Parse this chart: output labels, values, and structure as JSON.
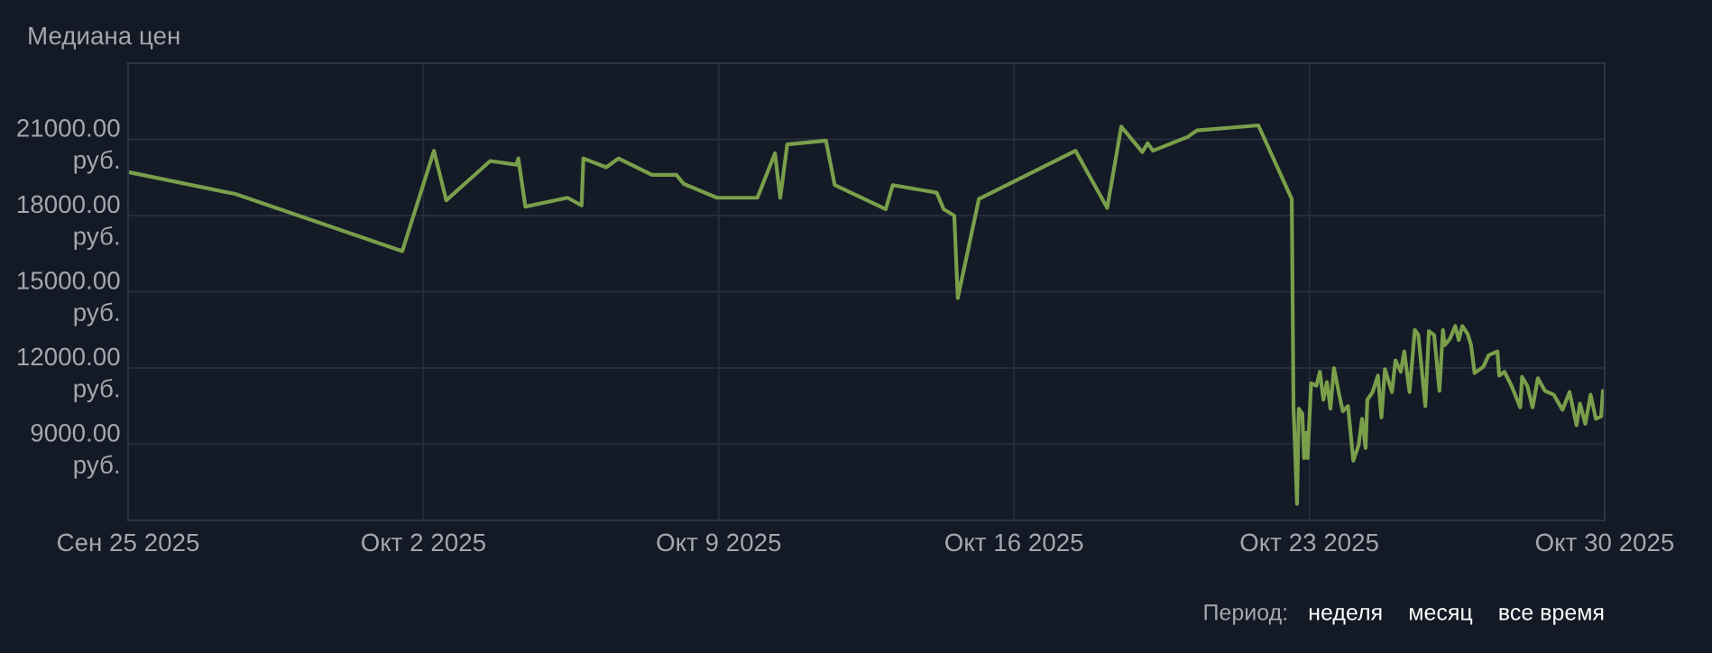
{
  "chart_data": {
    "type": "line",
    "title": "Медиана цен",
    "x": [
      "2025-09-25T01:00",
      "2025-09-27T13:00",
      "2025-10-01T12:00",
      "2025-10-02T06:00",
      "2025-10-02T13:00",
      "2025-10-03T14:00",
      "2025-10-04T05:00",
      "2025-10-04T06:00",
      "2025-10-04T10:00",
      "2025-10-05T10:00",
      "2025-10-05T18:00",
      "2025-10-05T19:00",
      "2025-10-06T08:00",
      "2025-10-06T15:00",
      "2025-10-07T10:00",
      "2025-10-08T00:00",
      "2025-10-08T04:00",
      "2025-10-08T23:00",
      "2025-10-09T22:00",
      "2025-10-10T08:00",
      "2025-10-10T11:00",
      "2025-10-10T15:00",
      "2025-10-11T13:00",
      "2025-10-11T18:00",
      "2025-10-12T23:00",
      "2025-10-13T03:00",
      "2025-10-14T04:00",
      "2025-10-14T08:00",
      "2025-10-14T14:00",
      "2025-10-14T16:00",
      "2025-10-15T04:00",
      "2025-10-17T11:00",
      "2025-10-18T05:00",
      "2025-10-18T13:00",
      "2025-10-19T01:00",
      "2025-10-19T04:00",
      "2025-10-19T07:00",
      "2025-10-20T03:00",
      "2025-10-20T08:00",
      "2025-10-21T19:00",
      "2025-10-22T14:00",
      "2025-10-22T15:00",
      "2025-10-22T17:00",
      "2025-10-22T18:00",
      "2025-10-22T20:00",
      "2025-10-22T21:00",
      "2025-10-22T22:00",
      "2025-10-22T23:00",
      "2025-10-23T01:00",
      "2025-10-23T04:00",
      "2025-10-23T06:00",
      "2025-10-23T08:00",
      "2025-10-23T10:00",
      "2025-10-23T12:00",
      "2025-10-23T14:00",
      "2025-10-23T17:00",
      "2025-10-23T19:00",
      "2025-10-23T22:00",
      "2025-10-24T01:00",
      "2025-10-24T04:00",
      "2025-10-24T06:00",
      "2025-10-24T08:00",
      "2025-10-24T09:00",
      "2025-10-24T12:00",
      "2025-10-24T15:00",
      "2025-10-24T17:00",
      "2025-10-24T19:00",
      "2025-10-24T23:00",
      "2025-10-25T01:00",
      "2025-10-25T04:00",
      "2025-10-25T06:00",
      "2025-10-25T09:00",
      "2025-10-25T12:00",
      "2025-10-25T14:00",
      "2025-10-25T18:00",
      "2025-10-25T20:00",
      "2025-10-25T23:00",
      "2025-10-26T02:00",
      "2025-10-26T04:00",
      "2025-10-26T05:00",
      "2025-10-26T08:00",
      "2025-10-26T11:00",
      "2025-10-26T13:00",
      "2025-10-26T15:00",
      "2025-10-26T18:00",
      "2025-10-26T20:00",
      "2025-10-26T22:00",
      "2025-10-27T03:00",
      "2025-10-27T06:00",
      "2025-10-27T11:00",
      "2025-10-27T12:00",
      "2025-10-27T15:00",
      "2025-10-27T19:00",
      "2025-10-28T00:00",
      "2025-10-28T01:00",
      "2025-10-28T04:00",
      "2025-10-28T07:00",
      "2025-10-28T10:00",
      "2025-10-28T14:00",
      "2025-10-28T19:00",
      "2025-10-29T00:00",
      "2025-10-29T04:00",
      "2025-10-29T08:00",
      "2025-10-29T10:00",
      "2025-10-29T13:00",
      "2025-10-29T16:00",
      "2025-10-29T19:00",
      "2025-10-29T22:00",
      "2025-10-29T23:00"
    ],
    "series": [
      {
        "color": "#7a9f4b",
        "values": [
          19700,
          18850,
          16600,
          20550,
          18600,
          20150,
          20000,
          20250,
          18350,
          18700,
          18400,
          20250,
          19900,
          20250,
          19600,
          19600,
          19250,
          18700,
          18700,
          20450,
          18700,
          20800,
          20950,
          19200,
          18250,
          19200,
          18900,
          18250,
          18000,
          14750,
          18650,
          20550,
          18300,
          21500,
          20500,
          20850,
          20550,
          21100,
          21350,
          21550,
          18650,
          10450,
          6650,
          10400,
          10200,
          8450,
          9450,
          8450,
          11400,
          11300,
          11850,
          10750,
          11450,
          10400,
          12000,
          10950,
          10300,
          10500,
          8350,
          8950,
          10000,
          8850,
          10750,
          11050,
          11700,
          10050,
          11950,
          11050,
          12300,
          11850,
          12650,
          11050,
          13500,
          13300,
          10500,
          13450,
          13300,
          11100,
          13500,
          12900,
          13150,
          13650,
          13100,
          13650,
          13350,
          12900,
          11800,
          12050,
          12500,
          12650,
          11700,
          11850,
          11300,
          10450,
          11650,
          11300,
          10450,
          11600,
          11100,
          10950,
          10350,
          11050,
          9750,
          10600,
          9800,
          10950,
          10000,
          10100,
          11100
        ]
      }
    ],
    "xlim": [
      "2025-09-25",
      "2025-10-30"
    ],
    "xticks": [
      {
        "value": "2025-09-25",
        "label": "Сен 25 2025"
      },
      {
        "value": "2025-10-02",
        "label": "Окт 2 2025"
      },
      {
        "value": "2025-10-09",
        "label": "Окт 9 2025"
      },
      {
        "value": "2025-10-16",
        "label": "Окт 16 2025"
      },
      {
        "value": "2025-10-23",
        "label": "Окт 23 2025"
      },
      {
        "value": "2025-10-30",
        "label": "Окт 30 2025"
      }
    ],
    "ylim": [
      6000,
      24000
    ],
    "yticks": [
      {
        "value": 9000,
        "label": "9000.00 руб."
      },
      {
        "value": 12000,
        "label": "12000.00 руб."
      },
      {
        "value": 15000,
        "label": "15000.00 руб."
      },
      {
        "value": 18000,
        "label": "18000.00 руб."
      },
      {
        "value": 21000,
        "label": "21000.00 руб."
      }
    ],
    "grid": true,
    "annotations": [
      "Период:",
      "неделя",
      "месяц",
      "все время"
    ]
  }
}
